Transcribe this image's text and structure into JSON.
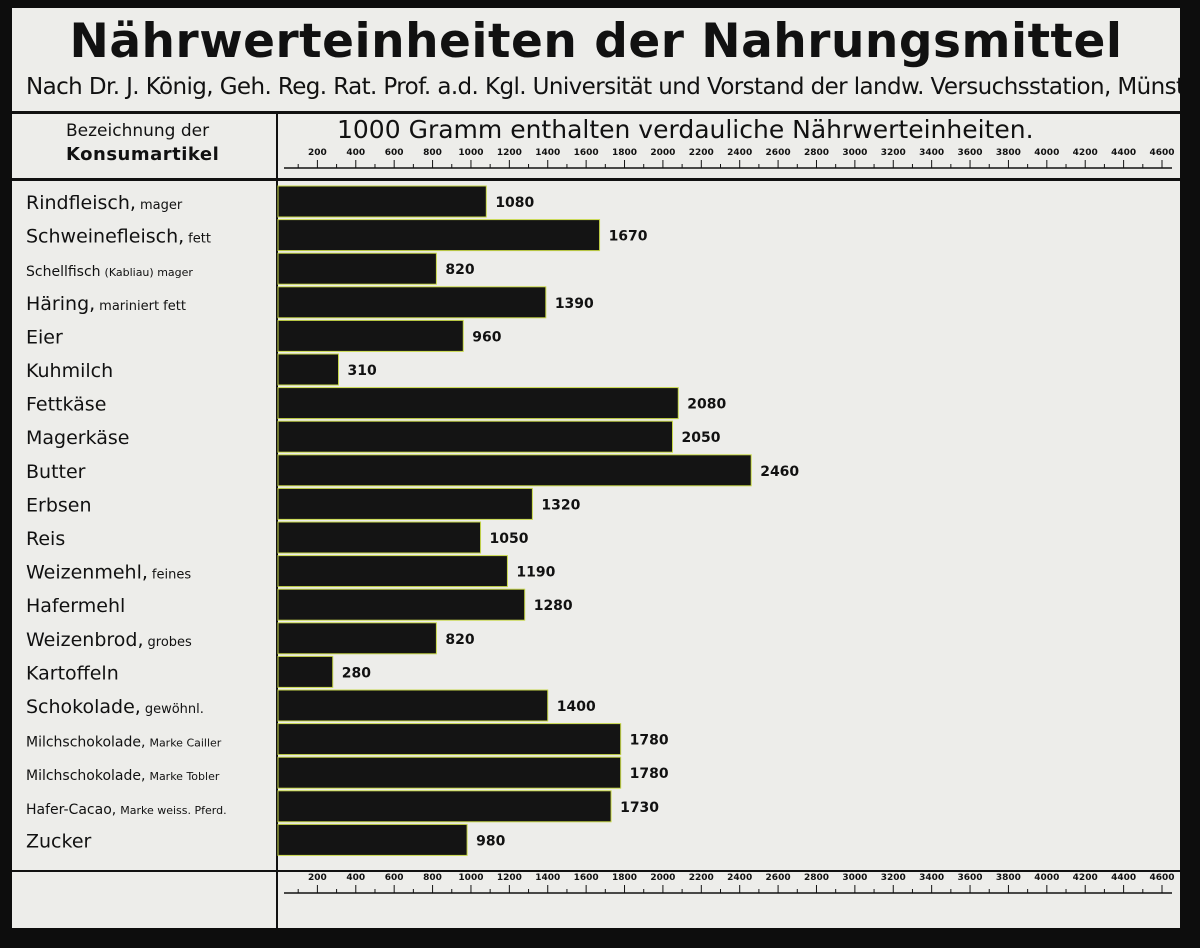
{
  "chart_data": {
    "type": "bar",
    "orientation": "horizontal",
    "title": "Nährwerteinheiten der Nahrungsmittel",
    "subtitle": "Nach Dr. J. König, Geh. Reg. Rat. Prof. a.d. Kgl. Universität und Vorstand der landw. Versuchsstation, Münster i/W.",
    "category_header_line1": "Bezeichnung der",
    "category_header_line2": "Konsumartikel",
    "xlabel": "1000 Gramm enthalten verdauliche Nährwerteinheiten.",
    "xlim": [
      0,
      4600
    ],
    "xticks": [
      200,
      400,
      600,
      800,
      1000,
      1200,
      1400,
      1600,
      1800,
      2000,
      2200,
      2400,
      2600,
      2800,
      3000,
      3200,
      3400,
      3600,
      3800,
      4000,
      4200,
      4400,
      4600
    ],
    "categories": [
      {
        "main": "Rindfleisch,",
        "qualifier": "mager"
      },
      {
        "main": "Schweinefleisch,",
        "qualifier": "fett"
      },
      {
        "main": "Schellfisch",
        "qualifier": "(Kabliau) mager"
      },
      {
        "main": "Häring,",
        "qualifier": "mariniert fett"
      },
      {
        "main": "Eier",
        "qualifier": ""
      },
      {
        "main": "Kuhmilch",
        "qualifier": ""
      },
      {
        "main": "Fettkäse",
        "qualifier": ""
      },
      {
        "main": "Magerkäse",
        "qualifier": ""
      },
      {
        "main": "Butter",
        "qualifier": ""
      },
      {
        "main": "Erbsen",
        "qualifier": ""
      },
      {
        "main": "Reis",
        "qualifier": ""
      },
      {
        "main": "Weizenmehl,",
        "qualifier": "feines"
      },
      {
        "main": "Hafermehl",
        "qualifier": ""
      },
      {
        "main": "Weizenbrod,",
        "qualifier": "grobes"
      },
      {
        "main": "Kartoffeln",
        "qualifier": ""
      },
      {
        "main": "Schokolade,",
        "qualifier": "gewöhnl."
      },
      {
        "main": "Milchschokolade,",
        "qualifier": "Marke Cailler"
      },
      {
        "main": "Milchschokolade,",
        "qualifier": "Marke Tobler"
      },
      {
        "main": "Hafer-Cacao,",
        "qualifier": "Marke weiss. Pferd."
      },
      {
        "main": "Zucker",
        "qualifier": ""
      }
    ],
    "values": [
      1080,
      1670,
      820,
      1390,
      960,
      310,
      2080,
      2050,
      2460,
      1320,
      1050,
      1190,
      1280,
      820,
      280,
      1400,
      1780,
      1780,
      1730,
      980
    ],
    "value_labels": [
      "1080",
      "1670",
      "820",
      "1390",
      "960",
      "310",
      "2080",
      "2050",
      "2460",
      "1320",
      "1050",
      "1190",
      "1280",
      "820",
      "280",
      "1400",
      "1780",
      "1780",
      "1730",
      "980"
    ],
    "bar_color": "#141414",
    "bar_edge_color": "#c8d84a",
    "grid": false
  }
}
